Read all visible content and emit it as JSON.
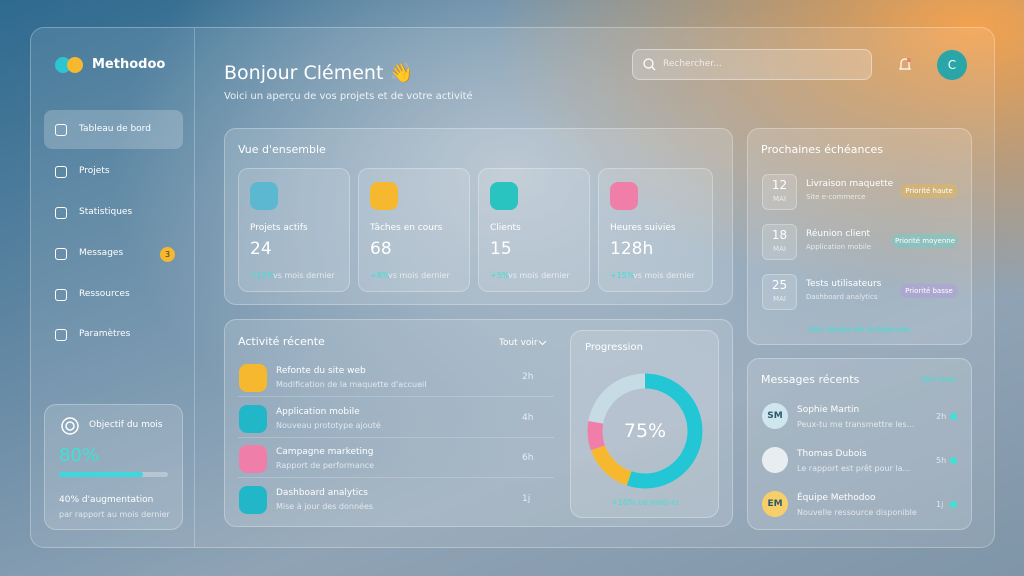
{
  "brand": "Methodoo",
  "sidebar": {
    "nav": [
      "Tableau de bord",
      "Projets",
      "Statistiques",
      "Messages",
      "Ressources",
      "Paramètres"
    ],
    "messages_badge": "3",
    "goal": {
      "title": "Objectif du mois",
      "value": "80%",
      "note": "40% d'augmentation",
      "sub": "par rapport au mois dernier"
    }
  },
  "header": {
    "greeting": "Bonjour Clément 👋",
    "subtitle": "Voici un aperçu de vos projets et de votre activité",
    "search_placeholder": "Rechercher...",
    "avatar": "C"
  },
  "overview": {
    "title": "Vue d'ensemble",
    "cards": [
      {
        "label": "Projets actifs",
        "value": "24",
        "trend": "+12%",
        "trend_note": "vs mois dernier"
      },
      {
        "label": "Tâches en cours",
        "value": "68",
        "trend": "+8%",
        "trend_note": "vs mois dernier"
      },
      {
        "label": "Clients",
        "value": "15",
        "trend": "+5%",
        "trend_note": "vs mois dernier"
      },
      {
        "label": "Heures suivies",
        "value": "128h",
        "trend": "+15%",
        "trend_note": "vs mois dernier"
      }
    ]
  },
  "activity": {
    "title": "Activité récente",
    "filter": "Tout voir",
    "items": [
      {
        "title": "Refonte du site web",
        "desc": "Modification de la maquette d'accueil",
        "time": "2h"
      },
      {
        "title": "Application mobile",
        "desc": "Nouveau prototype ajouté",
        "time": "4h"
      },
      {
        "title": "Campagne marketing",
        "desc": "Rapport de performance",
        "time": "6h"
      },
      {
        "title": "Dashboard analytics",
        "desc": "Mise à jour des données",
        "time": "1j"
      }
    ]
  },
  "progress": {
    "title": "Progression",
    "value": "75%",
    "note": "+10% ce mois-ci"
  },
  "deadlines": {
    "title": "Prochaines échéances",
    "link": "Voir toutes les échéances",
    "items": [
      {
        "day": "12",
        "month": "MAI",
        "title": "Livraison maquette",
        "desc": "Site e-commerce",
        "priority": "Priorité haute"
      },
      {
        "day": "18",
        "month": "MAI",
        "title": "Réunion client",
        "desc": "Application mobile",
        "priority": "Priorité moyenne"
      },
      {
        "day": "25",
        "month": "MAI",
        "title": "Tests utilisateurs",
        "desc": "Dashboard analytics",
        "priority": "Priorité basse"
      }
    ]
  },
  "messages": {
    "title": "Messages récents",
    "link": "Voir tout",
    "items": [
      {
        "initials": "SM",
        "name": "Sophie Martin",
        "text": "Peux-tu me transmettre les...",
        "time": "2h"
      },
      {
        "name": "Thomas Dubois",
        "text": "Le rapport est prêt pour la...",
        "time": "5h"
      },
      {
        "initials": "EM",
        "name": "Équipe Methodoo",
        "text": "Nouvelle ressource disponible",
        "time": "1j"
      }
    ]
  }
}
